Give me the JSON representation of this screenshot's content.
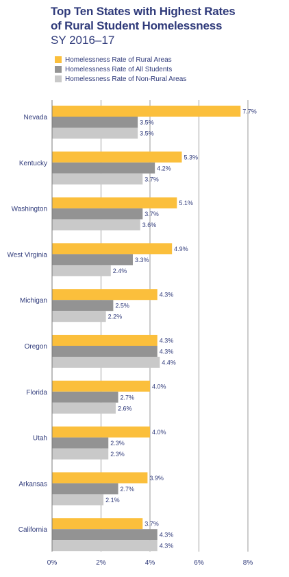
{
  "title": {
    "line1": "Top Ten States with Highest Rates",
    "line2": "of Rural Student Homelessness",
    "subtitle": "SY 2016–17"
  },
  "chart_data": {
    "type": "bar",
    "orientation": "horizontal",
    "title": "Top Ten States with Highest Rates of Rural Student Homelessness",
    "subtitle": "SY 2016–17",
    "categories": [
      "Nevada",
      "Kentucky",
      "Washington",
      "West Virginia",
      "Michigan",
      "Oregon",
      "Florida",
      "Utah",
      "Arkansas",
      "California"
    ],
    "series": [
      {
        "name": "Homelessness Rate of Rural Areas",
        "color": "#fbbf3c",
        "values": [
          7.7,
          5.3,
          5.1,
          4.9,
          4.3,
          4.3,
          4.0,
          4.0,
          3.9,
          3.7
        ],
        "labels": [
          "7.7%",
          "5.3%",
          "5.1%",
          "4.9%",
          "4.3%",
          "4.3%",
          "4.0%",
          "4.0%",
          "3.9%",
          "3.7%"
        ]
      },
      {
        "name": "Homelessness Rate of All Students",
        "color": "#939393",
        "values": [
          3.5,
          4.2,
          3.7,
          3.3,
          2.5,
          4.3,
          2.7,
          2.3,
          2.7,
          4.3
        ],
        "labels": [
          "3.5%",
          "4.2%",
          "3.7%",
          "3.3%",
          "2.5%",
          "4.3%",
          "2.7%",
          "2.3%",
          "2.7%",
          "4.3%"
        ]
      },
      {
        "name": "Homelessness Rate of Non-Rural Areas",
        "color": "#c9c9c9",
        "values": [
          3.5,
          3.7,
          3.6,
          2.4,
          2.2,
          4.4,
          2.6,
          2.3,
          2.1,
          4.3
        ],
        "labels": [
          "3.5%",
          "3.7%",
          "3.6%",
          "2.4%",
          "2.2%",
          "4.4%",
          "2.6%",
          "2.3%",
          "2.1%",
          "4.3%"
        ]
      }
    ],
    "xlim": [
      0,
      8.5
    ],
    "xticks": [
      0,
      2,
      4,
      6,
      8
    ],
    "xtick_labels": [
      "0%",
      "2%",
      "4%",
      "6%",
      "8%"
    ],
    "grid": "vertical",
    "legend_position": "top-left",
    "label_color": "#2f3a7a",
    "text_color": "#2f3a7a"
  }
}
